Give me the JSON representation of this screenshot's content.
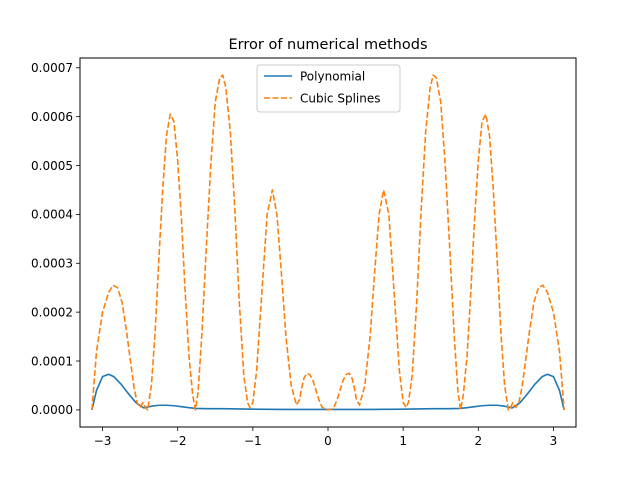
{
  "chart_data": {
    "type": "line",
    "title": "Error of numerical methods",
    "xlabel": "",
    "ylabel": "",
    "xlim": [
      -3.3,
      3.3
    ],
    "ylim": [
      -3.5e-05,
      0.00072
    ],
    "xticks": [
      -3,
      -2,
      -1,
      0,
      1,
      2,
      3
    ],
    "xtick_labels": [
      "−3",
      "−2",
      "−1",
      "0",
      "1",
      "2",
      "3"
    ],
    "yticks": [
      0.0,
      0.0001,
      0.0002,
      0.0003,
      0.0004,
      0.0005,
      0.0006,
      0.0007
    ],
    "ytick_labels": [
      "0.0000",
      "0.0001",
      "0.0002",
      "0.0003",
      "0.0004",
      "0.0005",
      "0.0006",
      "0.0007"
    ],
    "grid": false,
    "legend_position": "top-center",
    "series": [
      {
        "name": "Polynomial",
        "color": "#1f77b4",
        "style": "solid",
        "x": [
          -3.1416,
          -3.08,
          -3.0,
          -2.92,
          -2.85,
          -2.75,
          -2.65,
          -2.55,
          -2.45,
          -2.35,
          -2.25,
          -2.15,
          -2.05,
          -1.95,
          -1.85,
          -1.75,
          -1.6,
          -1.4,
          -1.2,
          -1.0,
          -0.8,
          -0.6,
          -0.4,
          -0.2,
          0.0,
          0.2,
          0.4,
          0.6,
          0.8,
          1.0,
          1.2,
          1.4,
          1.6,
          1.75,
          1.85,
          1.95,
          2.05,
          2.15,
          2.25,
          2.35,
          2.45,
          2.55,
          2.65,
          2.75,
          2.85,
          2.92,
          3.0,
          3.08,
          3.1416
        ],
        "y": [
          0.0,
          4e-05,
          6.8e-05,
          7.3e-05,
          6.8e-05,
          5.2e-05,
          3.2e-05,
          1.4e-05,
          4e-06,
          7.5e-06,
          9.5e-06,
          9.5e-06,
          8.5e-06,
          6.5e-06,
          4.5e-06,
          3e-06,
          2.5e-06,
          2.5e-06,
          2e-06,
          1.5e-06,
          1.2e-06,
          1e-06,
          1e-06,
          1e-06,
          1e-06,
          1e-06,
          1e-06,
          1e-06,
          1.2e-06,
          1.5e-06,
          2e-06,
          2.5e-06,
          2.5e-06,
          3e-06,
          4.5e-06,
          6.5e-06,
          8.5e-06,
          9.5e-06,
          9.5e-06,
          7.5e-06,
          4e-06,
          1.4e-05,
          3.2e-05,
          5.2e-05,
          6.8e-05,
          7.3e-05,
          6.8e-05,
          4e-05,
          0.0
        ]
      },
      {
        "name": "Cubic Splines",
        "color": "#ff7f0e",
        "style": "dashed",
        "x": [
          -3.1416,
          -3.08,
          -3.0,
          -2.92,
          -2.86,
          -2.8,
          -2.74,
          -2.68,
          -2.62,
          -2.58,
          -2.54,
          -2.5,
          -2.46,
          -2.43,
          -2.4,
          -2.35,
          -2.3,
          -2.25,
          -2.2,
          -2.15,
          -2.1,
          -2.05,
          -2.0,
          -1.95,
          -1.9,
          -1.85,
          -1.8,
          -1.765,
          -1.73,
          -1.68,
          -1.62,
          -1.56,
          -1.5,
          -1.44,
          -1.4,
          -1.36,
          -1.3,
          -1.24,
          -1.18,
          -1.12,
          -1.07,
          -1.04,
          -1.0,
          -0.95,
          -0.88,
          -0.81,
          -0.74,
          -0.68,
          -0.62,
          -0.56,
          -0.49,
          -0.42,
          -0.38,
          -0.35,
          -0.32,
          -0.28,
          -0.24,
          -0.2,
          -0.16,
          -0.12,
          -0.08,
          -0.04,
          0.0,
          0.04,
          0.08,
          0.12,
          0.16,
          0.2,
          0.24,
          0.28,
          0.32,
          0.35,
          0.38,
          0.42,
          0.49,
          0.56,
          0.62,
          0.68,
          0.74,
          0.81,
          0.88,
          0.95,
          1.0,
          1.04,
          1.07,
          1.12,
          1.18,
          1.24,
          1.3,
          1.36,
          1.4,
          1.44,
          1.5,
          1.56,
          1.62,
          1.68,
          1.73,
          1.765,
          1.8,
          1.85,
          1.9,
          1.95,
          2.0,
          2.05,
          2.1,
          2.15,
          2.2,
          2.25,
          2.3,
          2.35,
          2.4,
          2.43,
          2.46,
          2.5,
          2.54,
          2.58,
          2.62,
          2.68,
          2.74,
          2.8,
          2.86,
          2.92,
          3.0,
          3.08,
          3.1416
        ],
        "y": [
          0.0,
          0.00012,
          0.0002,
          0.00024,
          0.000255,
          0.00025,
          0.00022,
          0.00016,
          9e-05,
          4.5e-05,
          1.5e-05,
          5e-06,
          1.5e-05,
          5e-06,
          0.0,
          5e-05,
          0.00016,
          0.00031,
          0.00045,
          0.00056,
          0.000605,
          0.00059,
          0.00051,
          0.00039,
          0.00024,
          0.00011,
          3e-05,
          0.0,
          3.5e-05,
          0.00015,
          0.00033,
          0.0005,
          0.00063,
          0.00068,
          0.000685,
          0.00066,
          0.00057,
          0.00041,
          0.00022,
          7e-05,
          1.5e-05,
          5e-06,
          1.5e-05,
          8e-05,
          0.00024,
          0.0004,
          0.00045,
          0.0004,
          0.00028,
          0.00015,
          5e-05,
          1e-05,
          2e-05,
          4.5e-05,
          6.5e-05,
          7.5e-05,
          7.2e-05,
          6e-05,
          4e-05,
          2e-05,
          6e-06,
          1e-06,
          0.0,
          1e-06,
          6e-06,
          2e-05,
          4e-05,
          6e-05,
          7.2e-05,
          7.5e-05,
          6.5e-05,
          4.5e-05,
          2e-05,
          1e-05,
          5e-05,
          0.00015,
          0.00028,
          0.0004,
          0.00045,
          0.0004,
          0.00024,
          8e-05,
          1.5e-05,
          5e-06,
          1.5e-05,
          7e-05,
          0.00022,
          0.00041,
          0.00057,
          0.00066,
          0.000685,
          0.00068,
          0.00063,
          0.0005,
          0.00033,
          0.00015,
          3.5e-05,
          0.0,
          3e-05,
          0.00011,
          0.00024,
          0.00039,
          0.00051,
          0.00059,
          0.000605,
          0.00056,
          0.00045,
          0.00031,
          0.00016,
          5e-05,
          0.0,
          5e-06,
          1.5e-05,
          5e-06,
          1.5e-05,
          4.5e-05,
          9e-05,
          0.00016,
          0.00022,
          0.00025,
          0.000255,
          0.00024,
          0.0002,
          0.00012,
          0.0
        ]
      }
    ]
  }
}
